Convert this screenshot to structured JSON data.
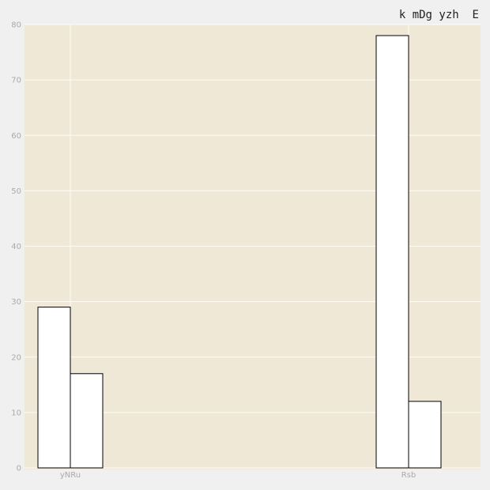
{
  "chart_data": {
    "type": "bar",
    "title": "k mDg yzh  E",
    "xlabel": "",
    "ylabel": "",
    "categories": [
      "yNRu",
      "Rsb"
    ],
    "series": [
      {
        "values": [
          29,
          78
        ]
      },
      {
        "values": [
          17,
          12
        ]
      }
    ],
    "ylim": [
      0,
      80
    ],
    "yticks": [
      0,
      10,
      20,
      30,
      40,
      50,
      60,
      70,
      80
    ],
    "grid": true,
    "colors": {
      "plot_background": "#efe8d6",
      "page_background": "#f0f0f0",
      "bar_fill": "#ffffff",
      "bar_edge": "#000000",
      "grid": "#ffffff",
      "tick_text": "#aaaaaa"
    }
  }
}
